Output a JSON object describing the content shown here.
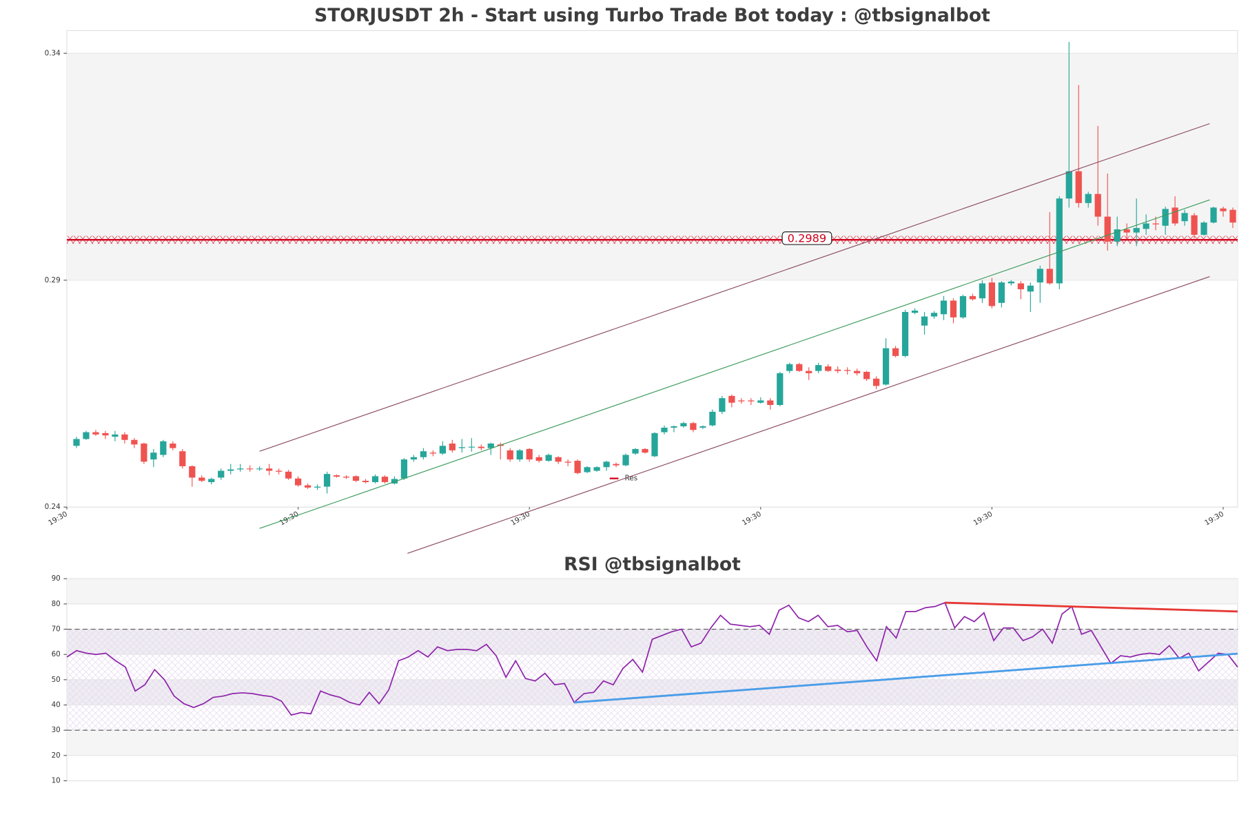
{
  "chart_data": [
    {
      "type": "candlestick",
      "title": "STORJUSDT 2h - Start using Turbo Trade Bot today : @tbsignalbot",
      "x": [
        0,
        1,
        2,
        3,
        4,
        5,
        6,
        7,
        8,
        9,
        10,
        11,
        12,
        13,
        14,
        15,
        16,
        17,
        18,
        19,
        20,
        21,
        22,
        23,
        24,
        25,
        26,
        27,
        28,
        29,
        30,
        31,
        32,
        33,
        34,
        35,
        36,
        37,
        38,
        39,
        40,
        41,
        42,
        43,
        44,
        45,
        46,
        47,
        48,
        49,
        50,
        51,
        52,
        53,
        54,
        55,
        56,
        57,
        58,
        59,
        60,
        61,
        62,
        63,
        64,
        65,
        66,
        67,
        68,
        69,
        70,
        71,
        72,
        73,
        74,
        75,
        76,
        77,
        78,
        79,
        80,
        81,
        82,
        83,
        84,
        85,
        86,
        87,
        88,
        89,
        90,
        91,
        92,
        93,
        94,
        95,
        96,
        97,
        98,
        99,
        100,
        101,
        102,
        103,
        104,
        105,
        106,
        107,
        108,
        109,
        110,
        111,
        112,
        113,
        114,
        115,
        116,
        117,
        118,
        119,
        120
      ],
      "open": [
        0.2535,
        0.255,
        0.2565,
        0.2563,
        0.2555,
        0.256,
        0.2548,
        0.254,
        0.2505,
        0.2515,
        0.254,
        0.2523,
        0.249,
        0.2465,
        0.2455,
        0.2465,
        0.248,
        0.2483,
        0.2485,
        0.2484,
        0.2485,
        0.248,
        0.2478,
        0.2463,
        0.2448,
        0.2443,
        0.2445,
        0.247,
        0.2467,
        0.2468,
        0.2458,
        0.2455,
        0.2467,
        0.2452,
        0.2463,
        0.2505,
        0.251,
        0.252,
        0.2518,
        0.254,
        0.253,
        0.2532,
        0.2533,
        0.253,
        0.2538,
        0.2525,
        0.2505,
        0.2528,
        0.251,
        0.2502,
        0.251,
        0.25,
        0.2502,
        0.2477,
        0.248,
        0.2488,
        0.2495,
        0.2492,
        0.2518,
        0.2528,
        0.2512,
        0.2565,
        0.2575,
        0.2578,
        0.2585,
        0.2575,
        0.258,
        0.261,
        0.2645,
        0.2635,
        0.2635,
        0.263,
        0.2635,
        0.2625,
        0.27,
        0.2715,
        0.27,
        0.27,
        0.271,
        0.2703,
        0.2702,
        0.27,
        0.2698,
        0.2683,
        0.267,
        0.275,
        0.2733,
        0.2828,
        0.28,
        0.282,
        0.2825,
        0.2855,
        0.2818,
        0.2865,
        0.286,
        0.2895,
        0.285,
        0.2893,
        0.2893,
        0.2875,
        0.2895,
        0.2925,
        0.2893,
        0.308,
        0.314,
        0.307,
        0.309,
        0.304,
        0.2985,
        0.3012,
        0.3005,
        0.3013,
        0.3025,
        0.302,
        0.306,
        0.303,
        0.3043,
        0.3,
        0.3027,
        0.3058,
        0.3055
      ],
      "high": [
        0.2555,
        0.2568,
        0.257,
        0.2568,
        0.2568,
        0.2565,
        0.2552,
        0.2542,
        0.2528,
        0.2548,
        0.2545,
        0.2528,
        0.2492,
        0.247,
        0.2465,
        0.2485,
        0.2495,
        0.2495,
        0.2492,
        0.249,
        0.2495,
        0.2485,
        0.2482,
        0.2468,
        0.2452,
        0.245,
        0.2478,
        0.2472,
        0.247,
        0.247,
        0.2462,
        0.2472,
        0.247,
        0.2468,
        0.2508,
        0.2515,
        0.253,
        0.2525,
        0.2545,
        0.2548,
        0.255,
        0.2552,
        0.2538,
        0.2542,
        0.2542,
        0.253,
        0.2528,
        0.253,
        0.2515,
        0.2518,
        0.2512,
        0.2505,
        0.2505,
        0.249,
        0.249,
        0.2502,
        0.2498,
        0.2518,
        0.253,
        0.253,
        0.2565,
        0.258,
        0.258,
        0.2588,
        0.2588,
        0.258,
        0.2615,
        0.2645,
        0.2648,
        0.264,
        0.264,
        0.2642,
        0.264,
        0.2698,
        0.2718,
        0.2718,
        0.2708,
        0.2718,
        0.2715,
        0.271,
        0.2708,
        0.2705,
        0.27,
        0.2688,
        0.2772,
        0.2755,
        0.2835,
        0.2838,
        0.283,
        0.2832,
        0.2865,
        0.286,
        0.2868,
        0.287,
        0.29,
        0.2905,
        0.2898,
        0.29,
        0.2898,
        0.2895,
        0.2932,
        0.305,
        0.3085,
        0.3425,
        0.333,
        0.3095,
        0.324,
        0.3135,
        0.304,
        0.3025,
        0.308,
        0.3045,
        0.304,
        0.3062,
        0.3085,
        0.3055,
        0.3048,
        0.303,
        0.3062,
        0.3062,
        0.306
      ],
      "low": [
        0.253,
        0.2548,
        0.2557,
        0.255,
        0.2545,
        0.254,
        0.253,
        0.2495,
        0.2488,
        0.251,
        0.2525,
        0.2485,
        0.2445,
        0.2455,
        0.245,
        0.246,
        0.2472,
        0.2478,
        0.2478,
        0.248,
        0.247,
        0.2472,
        0.246,
        0.2445,
        0.244,
        0.2438,
        0.243,
        0.2465,
        0.2462,
        0.2455,
        0.2452,
        0.2452,
        0.2452,
        0.245,
        0.246,
        0.25,
        0.2505,
        0.2512,
        0.2515,
        0.252,
        0.252,
        0.2522,
        0.2525,
        0.2515,
        0.2505,
        0.25,
        0.25,
        0.25,
        0.2498,
        0.25,
        0.2495,
        0.249,
        0.2472,
        0.2475,
        0.2478,
        0.248,
        0.2488,
        0.249,
        0.2515,
        0.2518,
        0.251,
        0.256,
        0.2565,
        0.2575,
        0.2565,
        0.2572,
        0.2578,
        0.2605,
        0.262,
        0.2628,
        0.2625,
        0.2628,
        0.2615,
        0.2622,
        0.2695,
        0.2698,
        0.268,
        0.2695,
        0.2698,
        0.2695,
        0.2692,
        0.269,
        0.2678,
        0.266,
        0.2668,
        0.273,
        0.273,
        0.2825,
        0.278,
        0.2815,
        0.2812,
        0.2805,
        0.2815,
        0.2855,
        0.285,
        0.2838,
        0.284,
        0.2888,
        0.2858,
        0.283,
        0.285,
        0.289,
        0.288,
        0.306,
        0.306,
        0.306,
        0.302,
        0.2965,
        0.2975,
        0.299,
        0.2975,
        0.3,
        0.301,
        0.3,
        0.302,
        0.302,
        0.2992,
        0.2998,
        0.3025,
        0.304,
        0.3015
      ],
      "close": [
        0.255,
        0.2565,
        0.256,
        0.2558,
        0.256,
        0.2548,
        0.2538,
        0.25,
        0.252,
        0.2545,
        0.253,
        0.249,
        0.2465,
        0.2458,
        0.2462,
        0.248,
        0.2483,
        0.2485,
        0.2484,
        0.2485,
        0.248,
        0.2478,
        0.2463,
        0.2448,
        0.2443,
        0.2445,
        0.2473,
        0.2467,
        0.2465,
        0.2458,
        0.2455,
        0.2468,
        0.2455,
        0.2462,
        0.2505,
        0.251,
        0.2523,
        0.2518,
        0.2535,
        0.2525,
        0.2532,
        0.2533,
        0.253,
        0.254,
        0.2535,
        0.2505,
        0.2525,
        0.2505,
        0.2502,
        0.2515,
        0.25,
        0.2498,
        0.2475,
        0.2488,
        0.2488,
        0.25,
        0.2492,
        0.2515,
        0.2528,
        0.252,
        0.2563,
        0.2575,
        0.2578,
        0.2585,
        0.257,
        0.2578,
        0.261,
        0.264,
        0.263,
        0.2633,
        0.2633,
        0.2635,
        0.2625,
        0.2695,
        0.2715,
        0.27,
        0.2695,
        0.2713,
        0.27,
        0.27,
        0.27,
        0.2695,
        0.2682,
        0.2667,
        0.275,
        0.2733,
        0.283,
        0.2833,
        0.282,
        0.2828,
        0.2855,
        0.2818,
        0.2865,
        0.2858,
        0.2893,
        0.2843,
        0.2895,
        0.2897,
        0.288,
        0.2888,
        0.2925,
        0.2893,
        0.308,
        0.314,
        0.307,
        0.309,
        0.304,
        0.2985,
        0.3012,
        0.3005,
        0.3015,
        0.3025,
        0.3023,
        0.3057,
        0.3025,
        0.3048,
        0.3,
        0.3027,
        0.306,
        0.3052,
        0.3027
      ],
      "up_color": "#26a69a",
      "down_color": "#ef5350",
      "xlim": [
        -1,
        120.5
      ],
      "xticks": [
        {
          "value": -1,
          "label": "19:30"
        },
        {
          "value": 23,
          "label": "19:30"
        },
        {
          "value": 47,
          "label": "19:30"
        },
        {
          "value": 71,
          "label": "19:30"
        },
        {
          "value": 95,
          "label": "19:30"
        },
        {
          "value": 119,
          "label": "19:30"
        }
      ],
      "ylim": [
        0.24,
        0.345
      ],
      "yticks": [
        0.24,
        0.29,
        0.34
      ],
      "grid": true,
      "bands": [
        {
          "from": 0.29,
          "to": 0.34,
          "color": "#f4f4f4"
        }
      ],
      "lines": [
        {
          "x": [
            19,
            117.6
          ],
          "y": [
            0.2523,
            0.3245
          ],
          "color": "#8b4a5e"
        },
        {
          "x": [
            19,
            117.6
          ],
          "y": [
            0.2353,
            0.3077
          ],
          "color": "#3a9a5a"
        },
        {
          "x": [
            34.35,
            117.6
          ],
          "y": [
            0.2298,
            0.2908
          ],
          "color": "#8b4a5e"
        }
      ],
      "resistance": {
        "name": "Res",
        "value": 0.2989,
        "color": "#d0021b"
      }
    },
    {
      "type": "line",
      "title": "RSI @tbsignalbot",
      "x": [
        0,
        1,
        2,
        3,
        4,
        5,
        6,
        7,
        8,
        9,
        10,
        11,
        12,
        13,
        14,
        15,
        16,
        17,
        18,
        19,
        20,
        21,
        22,
        23,
        24,
        25,
        26,
        27,
        28,
        29,
        30,
        31,
        32,
        33,
        34,
        35,
        36,
        37,
        38,
        39,
        40,
        41,
        42,
        43,
        44,
        45,
        46,
        47,
        48,
        49,
        50,
        51,
        52,
        53,
        54,
        55,
        56,
        57,
        58,
        59,
        60,
        61,
        62,
        63,
        64,
        65,
        66,
        67,
        68,
        69,
        70,
        71,
        72,
        73,
        74,
        75,
        76,
        77,
        78,
        79,
        80,
        81,
        82,
        83,
        84,
        85,
        86,
        87,
        88,
        89,
        90,
        91,
        92,
        93,
        94,
        95,
        96,
        97,
        98,
        99,
        100,
        101,
        102,
        103,
        104,
        105,
        106,
        107,
        108,
        109,
        110,
        111,
        112,
        113,
        114,
        115,
        116,
        117,
        118,
        119,
        120
      ],
      "values": [
        59,
        61.5,
        60.5,
        60,
        60.5,
        57.5,
        55,
        45.5,
        48,
        54,
        50,
        43.5,
        40.5,
        39,
        40.5,
        43,
        43.5,
        44.5,
        44.8,
        44.5,
        43.8,
        43.3,
        41.5,
        36,
        37,
        36.5,
        45.5,
        44,
        43,
        41,
        40,
        45,
        40.5,
        46,
        57.5,
        59,
        61.5,
        59,
        63,
        61.5,
        62,
        62,
        61.5,
        64,
        59.5,
        51,
        57.5,
        50.5,
        49.5,
        52.5,
        48,
        48.5,
        41,
        44.5,
        45,
        49.5,
        48,
        54.5,
        58,
        53,
        66,
        67.5,
        69,
        70,
        63,
        64.5,
        70.5,
        75.5,
        72,
        71.5,
        71,
        71.5,
        68,
        77.5,
        79.5,
        74.5,
        73,
        75.5,
        71,
        71.5,
        69,
        69.5,
        63,
        57.5,
        71,
        66.5,
        77,
        77,
        78.5,
        79,
        80.5,
        70.5,
        75,
        73,
        76.5,
        65.5,
        70.5,
        70.5,
        65.5,
        67,
        70,
        64.5,
        76,
        79,
        68,
        69.5,
        63,
        56.5,
        59.5,
        59,
        60,
        60.5,
        60,
        63.5,
        58.5,
        60.5,
        53.5,
        57,
        60.5,
        60,
        55
      ],
      "color": "#8e24aa",
      "xlim": [
        0,
        120
      ],
      "ylim": [
        10,
        90
      ],
      "yticks": [
        10,
        20,
        30,
        40,
        50,
        60,
        70,
        80,
        90
      ],
      "grid": true,
      "hlines": [
        30,
        70
      ],
      "bands": [
        {
          "from": 20,
          "to": 30,
          "color": "#f5f5f5"
        },
        {
          "from": 40,
          "to": 50,
          "color": "#efedf2"
        },
        {
          "from": 60,
          "to": 70,
          "color": "#efedf2"
        },
        {
          "from": 80,
          "to": 90,
          "color": "#f5f5f5"
        }
      ],
      "lines": [
        {
          "x": [
            90,
            120
          ],
          "y": [
            80.5,
            77
          ],
          "color": "#e53935"
        },
        {
          "x": [
            52,
            120
          ],
          "y": [
            41,
            60.3
          ],
          "color": "#4a9de8"
        }
      ]
    }
  ]
}
